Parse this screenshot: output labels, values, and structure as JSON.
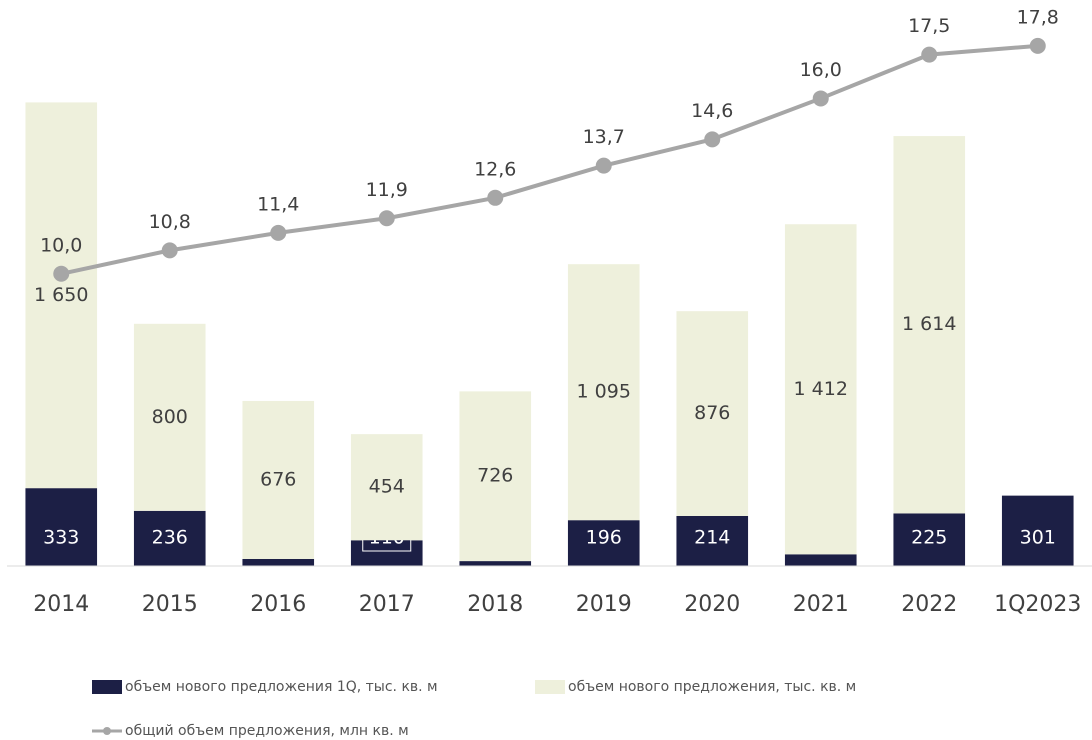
{
  "chart_data": {
    "type": "bar",
    "stacked": true,
    "categories": [
      "2014",
      "2015",
      "2016",
      "2017",
      "2018",
      "2019",
      "2020",
      "2021",
      "2022",
      "1Q2023"
    ],
    "ylim": [
      0,
      2250
    ],
    "y2lim": [
      0,
      18
    ],
    "legend": "bottom-left",
    "series": [
      {
        "name": "объем нового предложения 1Q, тыс. кв. м",
        "color": "#1c1f45",
        "values": [
          333,
          236,
          30,
          110,
          21,
          196,
          214,
          50,
          225,
          301
        ]
      },
      {
        "name": "объем нового предложения, тыс. кв. м",
        "color": "#eef0dc",
        "values": [
          1650,
          800,
          676,
          454,
          726,
          1095,
          876,
          1412,
          1614,
          null
        ],
        "value_labels": [
          "1 650",
          "800",
          "676",
          "454",
          "726",
          "1 095",
          "876",
          "1 412",
          "1 614",
          null
        ]
      },
      {
        "name": "общий объем предложения, млн кв. м",
        "color": "#a6a6a6",
        "type": "line",
        "axis": "y2",
        "values": [
          10.0,
          10.8,
          11.4,
          11.9,
          12.6,
          13.7,
          14.6,
          16.0,
          17.5,
          17.8
        ],
        "value_labels": [
          "10,0",
          "10,8",
          "11,4",
          "11,9",
          "12,6",
          "13,7",
          "14,6",
          "16,0",
          "17,5",
          "17,8"
        ]
      }
    ]
  }
}
